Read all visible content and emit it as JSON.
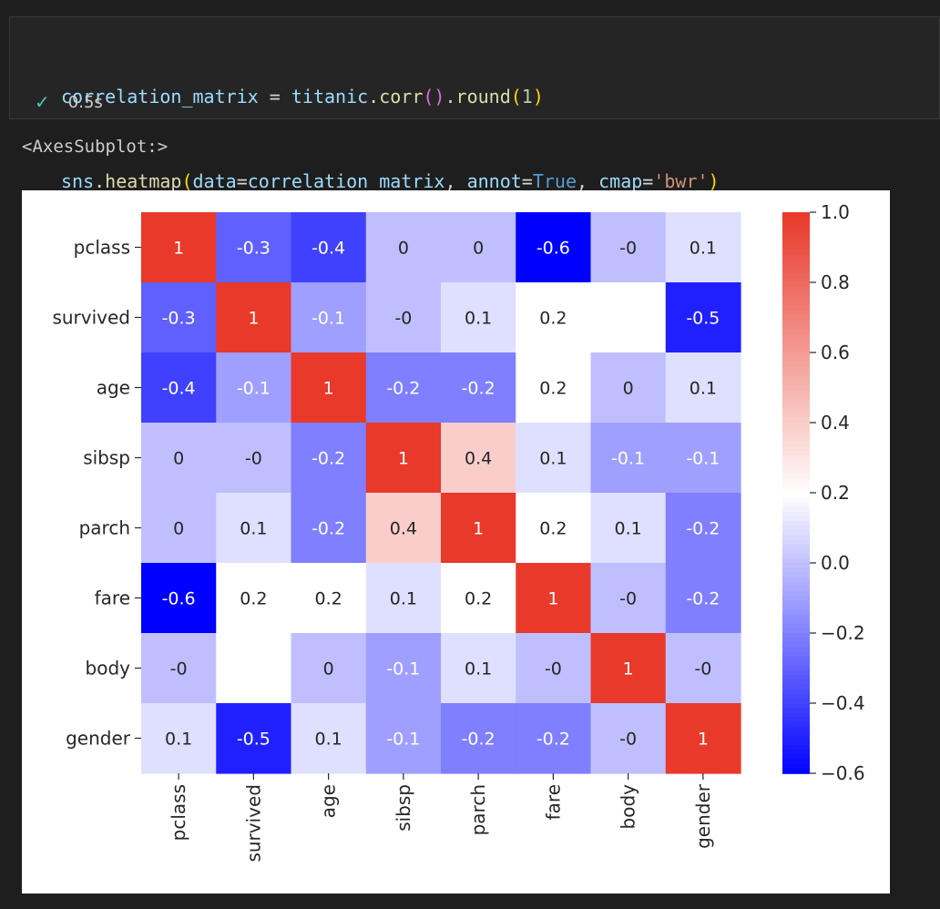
{
  "code": {
    "line1": {
      "var": "correlation_matrix",
      "op": " = ",
      "obj": "titanic",
      "dot": ".",
      "fn1": "corr",
      "b1": "()",
      "dot2": ".",
      "fn2": "round",
      "b2o": "(",
      "num": "1",
      "b2c": ")"
    },
    "line2": {
      "obj": "sns",
      "dot": ".",
      "fn": "heatmap",
      "bo": "(",
      "arg1": "data",
      "eq1": "=",
      "val1": "correlation_matrix",
      "comma1": ", ",
      "arg2": "annot",
      "eq2": "=",
      "val2": "True",
      "comma2": ", ",
      "arg3": "cmap",
      "eq3": "=",
      "val3": "'bwr'",
      "bc": ")"
    }
  },
  "status": {
    "icon": "check-icon",
    "duration": "0.5s"
  },
  "output_text": "<AxesSubplot:>",
  "chart_data": {
    "type": "heatmap",
    "rows": [
      "pclass",
      "survived",
      "age",
      "sibsp",
      "parch",
      "fare",
      "body",
      "gender"
    ],
    "cols": [
      "pclass",
      "survived",
      "age",
      "sibsp",
      "parch",
      "fare",
      "body",
      "gender"
    ],
    "values": [
      [
        1,
        -0.3,
        -0.4,
        0,
        0,
        -0.6,
        0,
        0.1
      ],
      [
        -0.3,
        1,
        -0.1,
        0,
        0.1,
        0.2,
        null,
        -0.5
      ],
      [
        -0.4,
        -0.1,
        1,
        -0.2,
        -0.2,
        0.2,
        0,
        0.1
      ],
      [
        0,
        0,
        -0.2,
        1,
        0.4,
        0.1,
        -0.1,
        -0.1
      ],
      [
        0,
        0.1,
        -0.2,
        0.4,
        1,
        0.2,
        0.1,
        -0.2
      ],
      [
        -0.6,
        0.2,
        0.2,
        0.1,
        0.2,
        1,
        0,
        -0.2
      ],
      [
        0,
        null,
        0,
        -0.1,
        0.1,
        0,
        1,
        0
      ],
      [
        0.1,
        -0.5,
        0.1,
        -0.1,
        -0.2,
        -0.2,
        0,
        1
      ]
    ],
    "labels": [
      [
        "1",
        "-0.3",
        "-0.4",
        "0",
        "0",
        "-0.6",
        "-0",
        "0.1"
      ],
      [
        "-0.3",
        "1",
        "-0.1",
        "-0",
        "0.1",
        "0.2",
        "",
        "-0.5"
      ],
      [
        "-0.4",
        "-0.1",
        "1",
        "-0.2",
        "-0.2",
        "0.2",
        "0",
        "0.1"
      ],
      [
        "0",
        "-0",
        "-0.2",
        "1",
        "0.4",
        "0.1",
        "-0.1",
        "-0.1"
      ],
      [
        "0",
        "0.1",
        "-0.2",
        "0.4",
        "1",
        "0.2",
        "0.1",
        "-0.2"
      ],
      [
        "-0.6",
        "0.2",
        "0.2",
        "0.1",
        "0.2",
        "1",
        "-0",
        "-0.2"
      ],
      [
        "-0",
        "",
        "0",
        "-0.1",
        "0.1",
        "-0",
        "1",
        "-0"
      ],
      [
        "0.1",
        "-0.5",
        "0.1",
        "-0.1",
        "-0.2",
        "-0.2",
        "-0",
        "1"
      ]
    ],
    "colormap": "bwr",
    "vmin": -0.6,
    "vmax": 1.0,
    "colorbar_ticks": [
      1.0,
      0.8,
      0.6,
      0.4,
      0.2,
      0.0,
      -0.2,
      -0.4,
      -0.6
    ],
    "colorbar_tick_labels": [
      "1.0",
      "0.8",
      "0.6",
      "0.4",
      "0.2",
      "0.0",
      "−0.2",
      "−0.4",
      "−0.6"
    ],
    "colors": {
      "low": "#0000ff",
      "mid": "#ffffff",
      "high": "#e8392b"
    }
  }
}
